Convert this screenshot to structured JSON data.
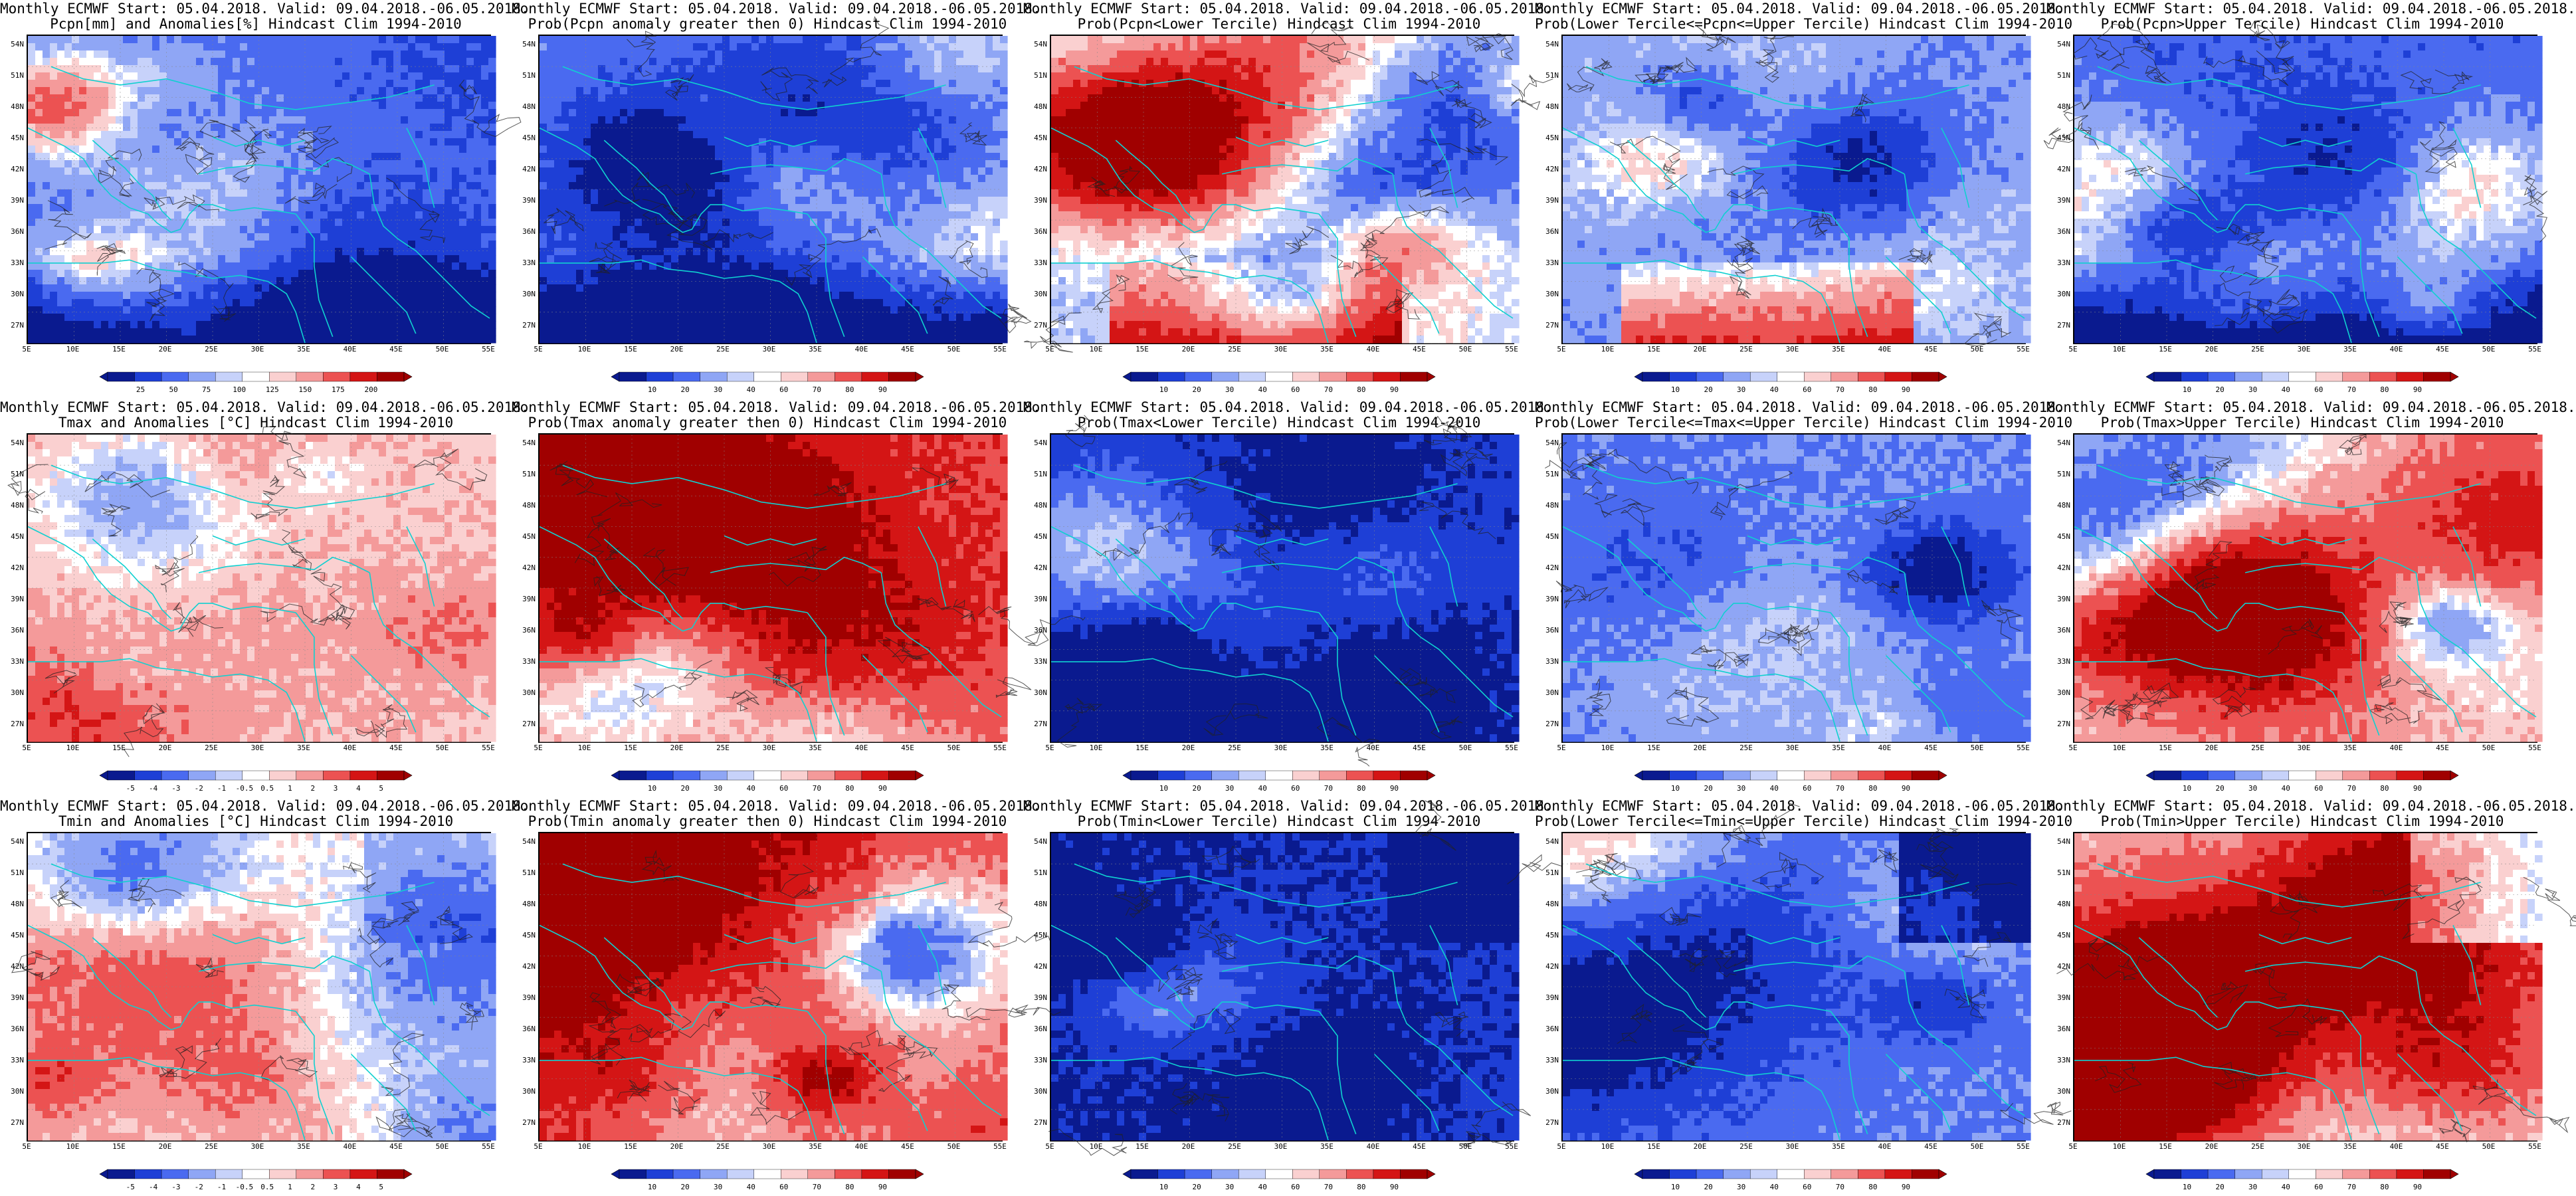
{
  "figure": {
    "panels": [
      {
        "title1": "Monthly ECMWF Start: 05.04.2018. Valid: 09.04.2018.-06.05.2018.",
        "title2": "Pcpn[mm] and Anomalies[%] Hindcast Clim 1994-2010",
        "scheme": "anom_pcp",
        "colorbar": [
          "25",
          "50",
          "75",
          "100",
          "125",
          "150",
          "175",
          "200"
        ],
        "cbtype": "anom"
      },
      {
        "title1": "Monthly ECMWF Start: 05.04.2018. Valid: 09.04.2018.-06.05.2018.",
        "title2": "Prob(Pcpn anomaly greater then 0) Hindcast Clim 1994-2010",
        "scheme": "prob_pcp",
        "colorbar": [
          "10",
          "20",
          "30",
          "40",
          "60",
          "70",
          "80",
          "90"
        ],
        "cbtype": "prob"
      },
      {
        "title1": "Monthly ECMWF Start: 05.04.2018. Valid: 09.04.2018.-06.05.2018.",
        "title2": "Prob(Pcpn<Lower Tercile) Hindcast Clim 1994-2010",
        "scheme": "lower_pcp",
        "colorbar": [
          "10",
          "20",
          "30",
          "40",
          "60",
          "70",
          "80",
          "90"
        ],
        "cbtype": "prob"
      },
      {
        "title1": "Monthly ECMWF Start: 05.04.2018. Valid: 09.04.2018.-06.05.2018.",
        "title2": "Prob(Lower Tercile<=Pcpn<=Upper Tercile) Hindcast Clim 1994-2010",
        "scheme": "mid_pcp",
        "colorbar": [
          "10",
          "20",
          "30",
          "40",
          "60",
          "70",
          "80",
          "90"
        ],
        "cbtype": "prob"
      },
      {
        "title1": "Monthly ECMWF Start: 05.04.2018. Valid: 09.04.2018.-06.05.2018.",
        "title2": "Prob(Pcpn>Upper Tercile) Hindcast Clim 1994-2010",
        "scheme": "upper_pcp",
        "colorbar": [
          "10",
          "20",
          "30",
          "40",
          "60",
          "70",
          "80",
          "90"
        ],
        "cbtype": "prob"
      },
      {
        "title1": "Monthly ECMWF Start: 05.04.2018. Valid: 09.04.2018.-06.05.2018.",
        "title2": "Tmax and Anomalies [°C] Hindcast Clim 1994-2010",
        "scheme": "anom_t",
        "colorbar": [
          "-5",
          "-4",
          "-3",
          "-2",
          "-1",
          "-0.5",
          "0.5",
          "1",
          "2",
          "3",
          "4",
          "5"
        ],
        "cbtype": "anomt"
      },
      {
        "title1": "Monthly ECMWF Start: 05.04.2018. Valid: 09.04.2018.-06.05.2018.",
        "title2": "Prob(Tmax anomaly greater then 0) Hindcast Clim 1994-2010",
        "scheme": "warm",
        "colorbar": [
          "10",
          "20",
          "30",
          "40",
          "60",
          "70",
          "80",
          "90"
        ],
        "cbtype": "prob"
      },
      {
        "title1": "Monthly ECMWF Start: 05.04.2018. Valid: 09.04.2018.-06.05.2018.",
        "title2": "Prob(Tmax<Lower Tercile) Hindcast Clim 1994-2010",
        "scheme": "cold",
        "colorbar": [
          "10",
          "20",
          "30",
          "40",
          "60",
          "70",
          "80",
          "90"
        ],
        "cbtype": "prob"
      },
      {
        "title1": "Monthly ECMWF Start: 05.04.2018. Valid: 09.04.2018.-06.05.2018.",
        "title2": "Prob(Lower Tercile<=Tmax<=Upper Tercile) Hindcast Clim 1994-2010",
        "scheme": "mid_t",
        "colorbar": [
          "10",
          "20",
          "30",
          "40",
          "60",
          "70",
          "80",
          "90"
        ],
        "cbtype": "prob"
      },
      {
        "title1": "Monthly ECMWF Start: 05.04.2018. Valid: 09.04.2018.-06.05.2018.",
        "title2": "Prob(Tmax>Upper Tercile) Hindcast Clim 1994-2010",
        "scheme": "upper_t",
        "colorbar": [
          "10",
          "20",
          "30",
          "40",
          "60",
          "70",
          "80",
          "90"
        ],
        "cbtype": "prob"
      },
      {
        "title1": "Monthly ECMWF Start: 05.04.2018. Valid: 09.04.2018.-06.05.2018.",
        "title2": "Tmin and Anomalies [°C] Hindcast Clim 1994-2010",
        "scheme": "anom_tmin",
        "colorbar": [
          "-5",
          "-4",
          "-3",
          "-2",
          "-1",
          "-0.5",
          "0.5",
          "1",
          "2",
          "3",
          "4",
          "5"
        ],
        "cbtype": "anomt"
      },
      {
        "title1": "Monthly ECMWF Start: 05.04.2018. Valid: 09.04.2018.-06.05.2018.",
        "title2": "Prob(Tmin anomaly greater then 0) Hindcast Clim 1994-2010",
        "scheme": "hot",
        "colorbar": [
          "10",
          "20",
          "30",
          "40",
          "60",
          "70",
          "80",
          "90"
        ],
        "cbtype": "prob"
      },
      {
        "title1": "Monthly ECMWF Start: 05.04.2018. Valid: 09.04.2018.-06.05.2018.",
        "title2": "Prob(Tmin<Lower Tercile) Hindcast Clim 1994-2010",
        "scheme": "coldest",
        "colorbar": [
          "10",
          "20",
          "30",
          "40",
          "60",
          "70",
          "80",
          "90"
        ],
        "cbtype": "prob"
      },
      {
        "title1": "Monthly ECMWF Start: 05.04.2018. Valid: 09.04.2018.-06.05.2018.",
        "title2": "Prob(Lower Tercile<=Tmin<=Upper Tercile) Hindcast Clim 1994-2010",
        "scheme": "mid_tmin",
        "colorbar": [
          "10",
          "20",
          "30",
          "40",
          "60",
          "70",
          "80",
          "90"
        ],
        "cbtype": "prob"
      },
      {
        "title1": "Monthly ECMWF Start: 05.04.2018. Valid: 09.04.2018.-06.05.2018.",
        "title2": "Prob(Tmin>Upper Tercile) Hindcast Clim 1994-2010",
        "scheme": "upper_tmin",
        "colorbar": [
          "10",
          "20",
          "30",
          "40",
          "60",
          "70",
          "80",
          "90"
        ],
        "cbtype": "prob"
      }
    ],
    "lat_labels": [
      "54N",
      "51N",
      "48N",
      "45N",
      "42N",
      "39N",
      "36N",
      "33N",
      "30N",
      "27N"
    ],
    "lon_labels": [
      "5E",
      "10E",
      "15E",
      "20E",
      "25E",
      "30E",
      "35E",
      "40E",
      "45E",
      "50E",
      "55E"
    ],
    "colors": {
      "anom_blues": [
        "#0a1a8f",
        "#1e3fd6",
        "#4a6af0",
        "#8fa6f5",
        "#c7d2fa"
      ],
      "anom_reds": [
        "#fad0d0",
        "#f49a9a",
        "#ec5252",
        "#d41515",
        "#a00000"
      ],
      "contour": "#222222",
      "coast": "#10d0d0",
      "text_blue": "#0000cc",
      "text_red": "#cc0000"
    }
  }
}
